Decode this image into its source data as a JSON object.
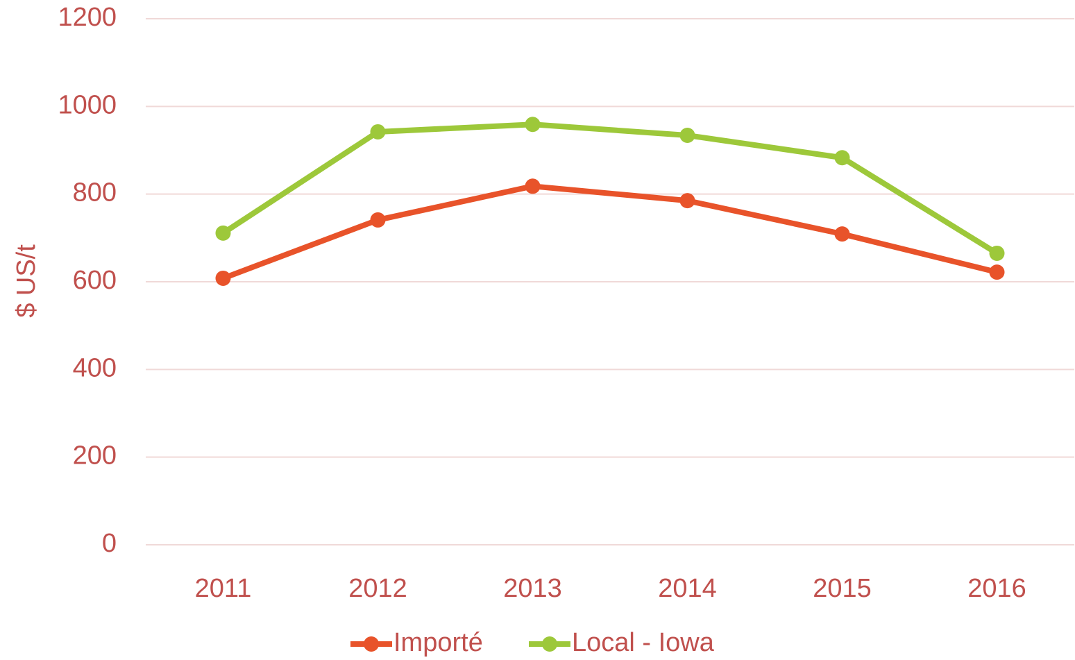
{
  "chart_data": {
    "type": "line",
    "y_label": "$ US/t",
    "categories": [
      "2011",
      "2012",
      "2013",
      "2014",
      "2015",
      "2016"
    ],
    "series": [
      {
        "name": "Importé",
        "color": "#e8532a",
        "values": [
          608,
          741,
          818,
          785,
          709,
          622
        ]
      },
      {
        "name": "Local - Iowa",
        "color": "#9dc83a",
        "values": [
          711,
          942,
          959,
          934,
          883,
          665
        ]
      }
    ],
    "ylim": [
      0,
      1200
    ],
    "yticks": [
      0,
      200,
      400,
      600,
      800,
      1000,
      1200
    ],
    "grid": true,
    "legend": "bottom"
  }
}
